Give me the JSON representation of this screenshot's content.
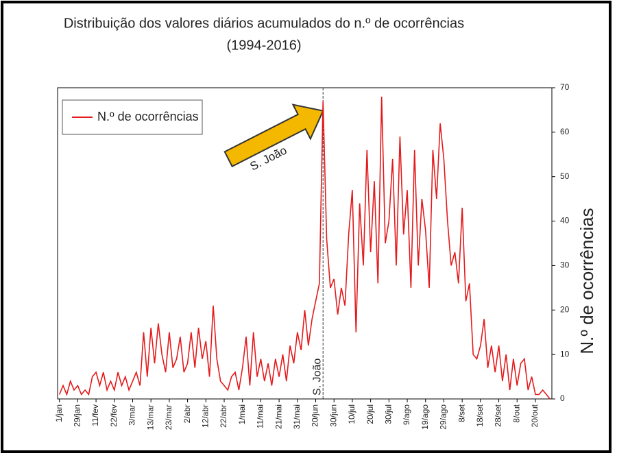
{
  "chart_data": {
    "type": "line",
    "title": "Distribuição dos valores diários acumulados do n.º de ocorrências",
    "subtitle": "(1994-2016)",
    "y_label": "N.º de ocorrências",
    "annotations": [
      "S. João",
      "S. João"
    ],
    "categories": [
      "1/jan",
      null,
      null,
      null,
      null,
      "29/jan",
      null,
      null,
      null,
      null,
      "11/fev",
      null,
      null,
      null,
      null,
      "22/fev",
      null,
      null,
      null,
      null,
      "3/mar",
      null,
      null,
      null,
      null,
      "13/mar",
      null,
      null,
      null,
      null,
      "23/mar",
      null,
      null,
      null,
      null,
      "2/abr",
      null,
      null,
      null,
      null,
      "12/abr",
      null,
      null,
      null,
      null,
      "22/abr",
      null,
      null,
      null,
      null,
      "1/mai",
      null,
      null,
      null,
      null,
      "11/mai",
      null,
      null,
      null,
      null,
      "21/mai",
      null,
      null,
      null,
      null,
      "31/mai",
      null,
      null,
      null,
      null,
      "20/jun",
      null,
      null,
      null,
      null,
      "30/jun",
      null,
      null,
      null,
      null,
      "10/jul",
      null,
      null,
      null,
      null,
      "20/jul",
      null,
      null,
      null,
      null,
      "30/jul",
      null,
      null,
      null,
      null,
      "9/ago",
      null,
      null,
      null,
      null,
      "19/ago",
      null,
      null,
      null,
      null,
      "29/ago",
      null,
      null,
      null,
      null,
      "8/set",
      null,
      null,
      null,
      null,
      "18/set",
      null,
      null,
      null,
      null,
      "28/set",
      null,
      null,
      null,
      null,
      "8/out",
      null,
      null,
      null,
      null,
      "20/out",
      null,
      null,
      null,
      null
    ],
    "series": [
      {
        "name": "N.º de ocorrências",
        "color": "#e41a1c",
        "values": [
          1,
          3,
          1,
          4,
          2,
          3,
          1,
          2,
          1,
          5,
          6,
          3,
          6,
          2,
          4,
          2,
          6,
          3,
          5,
          2,
          4,
          6,
          3,
          15,
          5,
          16,
          8,
          17,
          10,
          6,
          15,
          7,
          9,
          14,
          6,
          8,
          15,
          7,
          16,
          9,
          13,
          5,
          21,
          9,
          4,
          3,
          2,
          5,
          6,
          2,
          7,
          14,
          3,
          15,
          5,
          9,
          4,
          8,
          3,
          9,
          5,
          10,
          4,
          12,
          8,
          15,
          11,
          20,
          12,
          18,
          22,
          26,
          67,
          36,
          25,
          27,
          19,
          25,
          21,
          37,
          47,
          15,
          44,
          30,
          56,
          33,
          49,
          26,
          68,
          35,
          40,
          54,
          30,
          59,
          37,
          47,
          25,
          56,
          30,
          45,
          38,
          25,
          56,
          45,
          62,
          54,
          40,
          30,
          33,
          26,
          43,
          22,
          26,
          10,
          9,
          12,
          18,
          7,
          12,
          6,
          12,
          4,
          10,
          2,
          9,
          3,
          8,
          9,
          2,
          5,
          1,
          1,
          2,
          1,
          0
        ]
      }
    ],
    "ylim": [
      0,
      70
    ],
    "yticks": [
      0,
      10,
      20,
      30,
      40,
      50,
      60,
      70
    ],
    "legend": "upper left"
  }
}
